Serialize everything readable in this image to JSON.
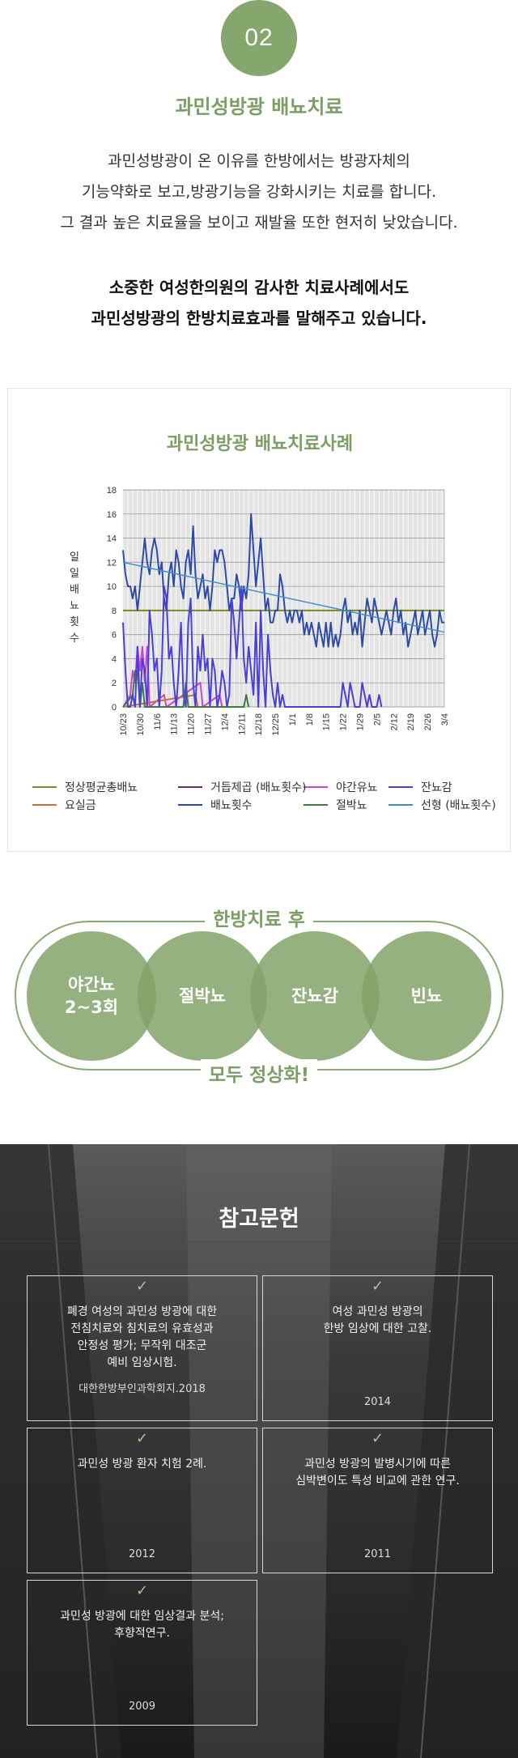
{
  "section": {
    "number": "02",
    "title": "과민성방광 배뇨치료",
    "intro_lines": [
      "과민성방광이 온 이유를 한방에서는 방광자체의",
      "기능약화로 보고,방광기능을 강화시키는 치료를 합니다.",
      "그 결과 높은 치료율을 보이고 재발율 또한 현저히 낮았습니다."
    ],
    "bold_lines": [
      "소중한 여성한의원의 감사한 치료사례에서도",
      "과민성방광의 한방치료효과를 말해주고 있습니다."
    ]
  },
  "chart_data": {
    "type": "line",
    "title": "과민성방광 배뇨치료사례",
    "ylabel": "일일배뇨횟수",
    "ylim": [
      0,
      18
    ],
    "yticks": [
      0,
      2,
      4,
      6,
      8,
      10,
      12,
      14,
      16,
      18
    ],
    "xtick_labels": [
      "10/23",
      "10/30",
      "11/6",
      "11/13",
      "11/20",
      "11/27",
      "12/4",
      "12/11",
      "12/18",
      "12/25",
      "1/1",
      "1/8",
      "1/15",
      "1/22",
      "1/29",
      "2/5",
      "2/12",
      "2/19",
      "2/26",
      "3/4"
    ],
    "n_days": 134,
    "grid": true,
    "legend_position": "bottom",
    "series": [
      {
        "name": "정상평균총배뇨",
        "color": "#7a8a20",
        "type": "constant",
        "value": 8
      },
      {
        "name": "야간유뇨",
        "color": "#cc44cc",
        "points": [
          [
            0,
            0
          ],
          [
            3,
            1
          ],
          [
            4,
            3
          ],
          [
            5,
            2
          ],
          [
            6,
            5
          ],
          [
            7,
            3
          ],
          [
            8,
            5
          ],
          [
            9,
            2
          ],
          [
            10,
            5
          ],
          [
            11,
            0
          ],
          [
            17,
            1
          ],
          [
            18,
            0
          ],
          [
            32,
            2
          ],
          [
            33,
            0
          ],
          [
            40,
            1
          ],
          [
            41,
            0
          ]
        ]
      },
      {
        "name": "요실금",
        "color": "#c8703c",
        "points": [
          [
            0,
            0
          ],
          [
            30,
            1
          ],
          [
            31,
            0
          ]
        ]
      },
      {
        "name": "거듭제곱 (배뇨횟수)",
        "color": "#6a2a6a",
        "type": "trend"
      },
      {
        "name": "배뇨횟수",
        "color": "#2e4aa8",
        "points": [
          [
            0,
            13
          ],
          [
            1,
            11
          ],
          [
            2,
            10
          ],
          [
            3,
            10
          ],
          [
            4,
            9
          ],
          [
            5,
            10
          ],
          [
            6,
            8
          ],
          [
            7,
            10
          ],
          [
            8,
            12
          ],
          [
            9,
            14
          ],
          [
            10,
            12
          ],
          [
            11,
            11
          ],
          [
            12,
            13
          ],
          [
            13,
            14
          ],
          [
            14,
            13
          ],
          [
            15,
            11
          ],
          [
            16,
            12
          ],
          [
            17,
            9
          ],
          [
            18,
            8
          ],
          [
            19,
            11
          ],
          [
            20,
            12
          ],
          [
            21,
            10
          ],
          [
            22,
            13
          ],
          [
            23,
            12
          ],
          [
            24,
            10
          ],
          [
            25,
            9
          ],
          [
            26,
            12
          ],
          [
            27,
            13
          ],
          [
            28,
            11
          ],
          [
            29,
            15
          ],
          [
            30,
            11
          ],
          [
            31,
            9
          ],
          [
            32,
            10
          ],
          [
            33,
            11
          ],
          [
            34,
            9
          ],
          [
            35,
            10
          ],
          [
            36,
            8
          ],
          [
            37,
            10
          ],
          [
            38,
            13
          ],
          [
            39,
            12
          ],
          [
            40,
            13
          ],
          [
            41,
            13
          ],
          [
            42,
            12
          ],
          [
            43,
            10
          ],
          [
            44,
            8
          ],
          [
            45,
            9
          ],
          [
            46,
            9
          ],
          [
            47,
            11
          ],
          [
            48,
            10
          ],
          [
            49,
            8
          ],
          [
            50,
            10
          ],
          [
            51,
            9
          ],
          [
            52,
            11
          ],
          [
            53,
            16
          ],
          [
            54,
            13
          ],
          [
            55,
            10
          ],
          [
            56,
            12
          ],
          [
            57,
            14
          ],
          [
            58,
            11
          ],
          [
            59,
            8
          ],
          [
            60,
            9
          ],
          [
            61,
            7
          ],
          [
            62,
            7
          ],
          [
            63,
            8
          ],
          [
            64,
            8
          ],
          [
            65,
            11
          ],
          [
            66,
            10
          ],
          [
            67,
            8
          ],
          [
            68,
            7
          ],
          [
            69,
            8
          ],
          [
            70,
            7
          ],
          [
            71,
            8
          ],
          [
            72,
            8
          ],
          [
            73,
            7
          ],
          [
            74,
            8
          ],
          [
            75,
            6
          ],
          [
            76,
            7
          ],
          [
            77,
            6
          ],
          [
            78,
            7
          ],
          [
            79,
            6
          ],
          [
            80,
            5
          ],
          [
            81,
            7
          ],
          [
            82,
            6
          ],
          [
            83,
            5
          ],
          [
            84,
            7
          ],
          [
            85,
            5
          ],
          [
            86,
            7
          ],
          [
            87,
            5
          ],
          [
            88,
            6
          ],
          [
            89,
            5
          ],
          [
            90,
            6
          ],
          [
            91,
            8
          ],
          [
            92,
            9
          ],
          [
            93,
            7
          ],
          [
            94,
            8
          ],
          [
            95,
            6
          ],
          [
            96,
            7
          ],
          [
            97,
            6
          ],
          [
            98,
            8
          ],
          [
            99,
            5
          ],
          [
            100,
            7
          ],
          [
            101,
            9
          ],
          [
            102,
            8
          ],
          [
            103,
            7
          ],
          [
            104,
            9
          ],
          [
            105,
            8
          ],
          [
            106,
            7
          ],
          [
            107,
            6
          ],
          [
            108,
            7
          ],
          [
            109,
            8
          ],
          [
            110,
            7
          ],
          [
            111,
            6
          ],
          [
            112,
            8
          ],
          [
            113,
            9
          ],
          [
            114,
            7
          ],
          [
            115,
            8
          ],
          [
            116,
            6
          ],
          [
            117,
            7
          ],
          [
            118,
            5
          ],
          [
            119,
            6
          ],
          [
            120,
            7
          ],
          [
            121,
            8
          ],
          [
            122,
            6
          ],
          [
            123,
            7
          ],
          [
            124,
            8
          ],
          [
            125,
            6
          ],
          [
            126,
            7
          ],
          [
            127,
            8
          ],
          [
            128,
            6
          ],
          [
            129,
            5
          ],
          [
            130,
            6
          ],
          [
            131,
            8
          ],
          [
            132,
            7
          ],
          [
            133,
            7
          ]
        ]
      },
      {
        "name": "절박뇨",
        "color": "#3d7a3d",
        "points": [
          [
            0,
            0
          ],
          [
            4,
            1
          ],
          [
            5,
            3
          ],
          [
            6,
            3
          ],
          [
            7,
            0
          ],
          [
            8,
            2
          ],
          [
            9,
            0
          ],
          [
            25,
            0
          ],
          [
            26,
            2
          ],
          [
            27,
            0
          ],
          [
            50,
            0
          ],
          [
            51,
            1
          ],
          [
            52,
            0
          ]
        ]
      },
      {
        "name": "잔뇨감",
        "color": "#4a3fd8",
        "points": [
          [
            0,
            7
          ],
          [
            1,
            3
          ],
          [
            2,
            0
          ],
          [
            3,
            0
          ],
          [
            4,
            1
          ],
          [
            5,
            0
          ],
          [
            6,
            5
          ],
          [
            7,
            0
          ],
          [
            8,
            4
          ],
          [
            9,
            3
          ],
          [
            10,
            0
          ],
          [
            11,
            8
          ],
          [
            12,
            6
          ],
          [
            13,
            3
          ],
          [
            14,
            4
          ],
          [
            15,
            0
          ],
          [
            16,
            3
          ],
          [
            17,
            10
          ],
          [
            18,
            9
          ],
          [
            19,
            4
          ],
          [
            20,
            5
          ],
          [
            21,
            2
          ],
          [
            22,
            0
          ],
          [
            23,
            3
          ],
          [
            24,
            7
          ],
          [
            25,
            1
          ],
          [
            26,
            0
          ],
          [
            27,
            7
          ],
          [
            28,
            9
          ],
          [
            29,
            2
          ],
          [
            30,
            0
          ],
          [
            31,
            5
          ],
          [
            32,
            3
          ],
          [
            33,
            6
          ],
          [
            34,
            3
          ],
          [
            35,
            4
          ],
          [
            36,
            0
          ],
          [
            37,
            4
          ],
          [
            38,
            3
          ],
          [
            39,
            0
          ],
          [
            40,
            1
          ],
          [
            41,
            3
          ],
          [
            42,
            2
          ],
          [
            43,
            0
          ],
          [
            44,
            1
          ],
          [
            45,
            9
          ],
          [
            46,
            7
          ],
          [
            47,
            4
          ],
          [
            48,
            7
          ],
          [
            49,
            10
          ],
          [
            50,
            4
          ],
          [
            51,
            2
          ],
          [
            52,
            5
          ],
          [
            53,
            3
          ],
          [
            54,
            1
          ],
          [
            55,
            7
          ],
          [
            56,
            0
          ],
          [
            57,
            8
          ],
          [
            58,
            3
          ],
          [
            59,
            0
          ],
          [
            60,
            6
          ],
          [
            61,
            3
          ],
          [
            62,
            1
          ],
          [
            63,
            0
          ],
          [
            64,
            2
          ],
          [
            65,
            0
          ],
          [
            66,
            1
          ],
          [
            67,
            0
          ],
          [
            70,
            0
          ],
          [
            71,
            0
          ],
          [
            90,
            0
          ],
          [
            91,
            2
          ],
          [
            92,
            1
          ],
          [
            93,
            0
          ],
          [
            94,
            2
          ],
          [
            95,
            1
          ],
          [
            96,
            0
          ],
          [
            98,
            0
          ],
          [
            99,
            2
          ],
          [
            100,
            1
          ],
          [
            101,
            0
          ],
          [
            102,
            1
          ],
          [
            103,
            0
          ],
          [
            105,
            0
          ],
          [
            106,
            1
          ],
          [
            107,
            0
          ]
        ]
      },
      {
        "name": "선형 (배뇨횟수)",
        "color": "#3f8fc8",
        "type": "trend",
        "from": [
          0,
          12.0
        ],
        "to": [
          133,
          6.2
        ]
      }
    ]
  },
  "after": {
    "title": "한방치료 후",
    "items": [
      {
        "line1": "야간뇨",
        "line2": "2~3회"
      },
      {
        "line1": "절박뇨",
        "line2": ""
      },
      {
        "line1": "잔뇨감",
        "line2": ""
      },
      {
        "line1": "빈뇨",
        "line2": ""
      }
    ],
    "bottom": "모두 정상화!"
  },
  "references": {
    "title": "참고문헌",
    "check_icon": "checkmark-icon",
    "cards": [
      {
        "lines": [
          "폐경 여성의 과민성 방광에 대한",
          "전침치료와 침치료의 유효성과",
          "안정성 평가; 무작위 대조군",
          "예비 임상시험."
        ],
        "sub": "대한한방부인과학회지.2018"
      },
      {
        "lines": [
          "여성 과민성 방광의",
          "한방 임상에 대한 고찰."
        ],
        "sub": "2014"
      },
      {
        "lines": [
          "과민성 방광 환자 치험 2례."
        ],
        "sub": "2012"
      },
      {
        "lines": [
          "과민성 방광의 발병시기에 따른",
          "심박변이도 특성 비교에 관한 연구."
        ],
        "sub": "2011"
      },
      {
        "lines": [
          "과민성 방광에 대한 임상결과 분석;",
          "후향적연구."
        ],
        "sub": "2009"
      }
    ]
  }
}
